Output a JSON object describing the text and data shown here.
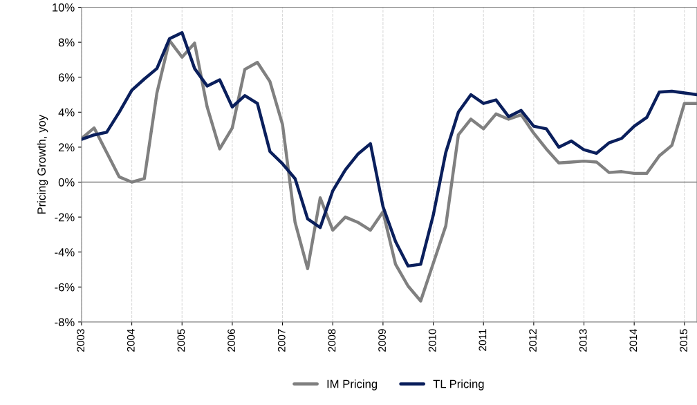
{
  "chart_data": {
    "type": "line",
    "ylabel": "Pricing Growth, yoy",
    "x": [
      2003,
      2003.25,
      2003.5,
      2003.75,
      2004,
      2004.25,
      2004.5,
      2004.75,
      2005,
      2005.25,
      2005.5,
      2005.75,
      2006,
      2006.25,
      2006.5,
      2006.75,
      2007,
      2007.25,
      2007.5,
      2007.75,
      2008,
      2008.25,
      2008.5,
      2008.75,
      2009,
      2009.25,
      2009.5,
      2009.75,
      2010,
      2010.25,
      2010.5,
      2010.75,
      2011,
      2011.25,
      2011.5,
      2011.75,
      2012,
      2012.25,
      2012.5,
      2012.75,
      2013,
      2013.25,
      2013.5,
      2013.75,
      2014,
      2014.25,
      2014.5,
      2014.75,
      2015,
      2015.25
    ],
    "series": [
      {
        "name": "IM Pricing",
        "color": "#808080",
        "values": [
          2.5,
          3.1,
          1.7,
          0.3,
          0.0,
          0.2,
          5.1,
          8.1,
          7.15,
          7.95,
          4.3,
          1.9,
          3.1,
          6.45,
          6.85,
          5.75,
          3.3,
          -2.3,
          -4.95,
          -0.9,
          -2.75,
          -2.0,
          -2.3,
          -2.75,
          -1.7,
          -4.7,
          -5.95,
          -6.8,
          -4.65,
          -2.5,
          2.7,
          3.6,
          3.05,
          3.9,
          3.6,
          3.85,
          2.8,
          1.9,
          1.1,
          1.15,
          1.2,
          1.15,
          0.55,
          0.6,
          0.5,
          0.5,
          1.5,
          2.1,
          4.5,
          4.5
        ]
      },
      {
        "name": "TL Pricing",
        "color": "#0a1f5c",
        "values": [
          2.45,
          2.7,
          2.85,
          4.0,
          5.25,
          5.9,
          6.5,
          8.2,
          8.55,
          6.5,
          5.5,
          5.85,
          4.3,
          4.95,
          4.5,
          1.75,
          1.05,
          0.2,
          -2.1,
          -2.6,
          -0.5,
          0.7,
          1.6,
          2.2,
          -1.4,
          -3.4,
          -4.8,
          -4.7,
          -1.9,
          1.7,
          4.0,
          5.0,
          4.5,
          4.7,
          3.75,
          4.1,
          3.2,
          3.05,
          2.0,
          2.35,
          1.85,
          1.65,
          2.25,
          2.5,
          3.2,
          3.7,
          5.15,
          5.2,
          5.1,
          5.0
        ]
      }
    ],
    "xlim": [
      2003,
      2015.25
    ],
    "xticks": [
      2003,
      2004,
      2005,
      2006,
      2007,
      2008,
      2009,
      2010,
      2011,
      2012,
      2013,
      2014,
      2015
    ],
    "ylim": [
      -8,
      10
    ],
    "yticks": [
      {
        "value": -8,
        "label": "-8%"
      },
      {
        "value": -6,
        "label": "-6%"
      },
      {
        "value": -4,
        "label": "-4%"
      },
      {
        "value": -2,
        "label": "-2%"
      },
      {
        "value": 0,
        "label": "0%"
      },
      {
        "value": 2,
        "label": "2%"
      },
      {
        "value": 4,
        "label": "4%"
      },
      {
        "value": 6,
        "label": "6%"
      },
      {
        "value": 8,
        "label": "8%"
      },
      {
        "value": 10,
        "label": "10%"
      }
    ],
    "ref_lines": [
      {
        "axis": "y",
        "value": 0,
        "label": null,
        "color": "#808080"
      }
    ],
    "grid": "x",
    "legend": "bottom",
    "marker": "none",
    "line_style": "solid"
  }
}
